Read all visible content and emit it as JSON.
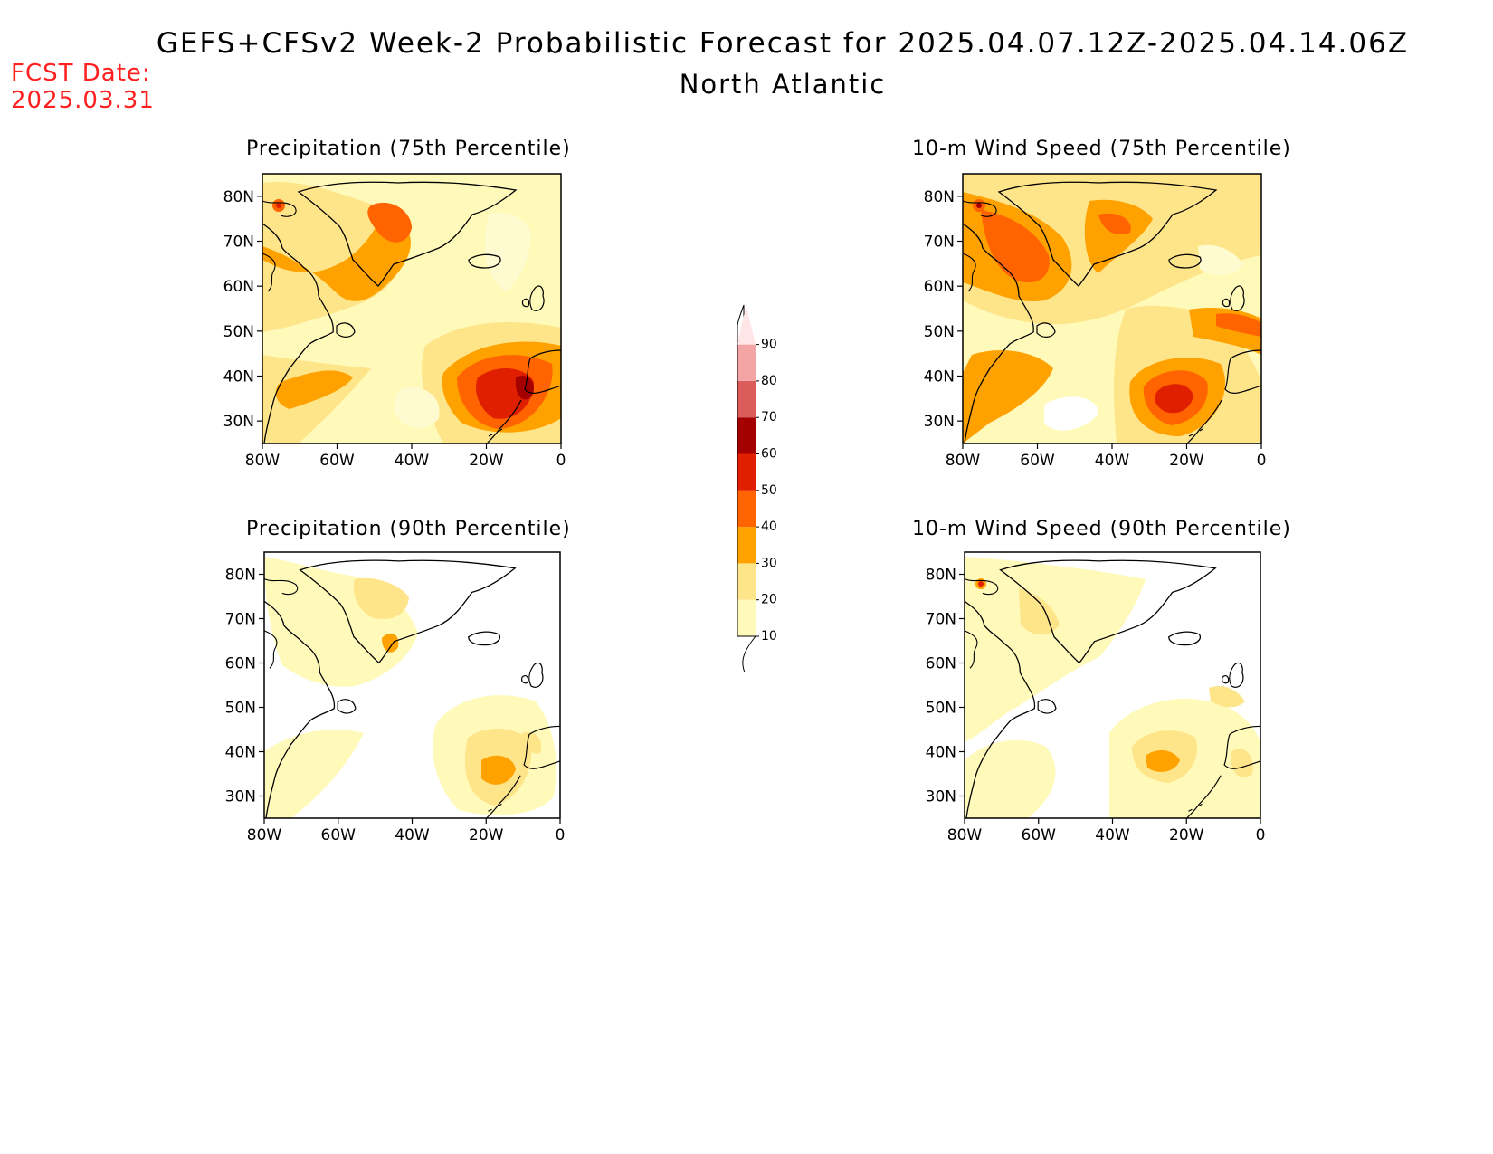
{
  "header": {
    "title": "GEFS+CFSv2 Week-2 Probabilistic Forecast for 2025.04.07.12Z-2025.04.14.06Z",
    "subtitle": "North Atlantic",
    "fcst_date_label": "FCST Date:",
    "fcst_date_value": "2025.03.31"
  },
  "panels": [
    {
      "title": "Precipitation (75th Percentile)"
    },
    {
      "title": "10-m Wind Speed (75th Percentile)"
    },
    {
      "title": "Precipitation (90th Percentile)"
    },
    {
      "title": "10-m Wind Speed (90th Percentile)"
    }
  ],
  "axes": {
    "lat_ticks": [
      "80N",
      "70N",
      "60N",
      "50N",
      "40N",
      "30N"
    ],
    "lon_ticks": [
      "80W",
      "60W",
      "40W",
      "20W",
      "0"
    ]
  },
  "colorbar": {
    "levels": [
      "10",
      "20",
      "30",
      "40",
      "50",
      "60",
      "70",
      "80",
      "90"
    ],
    "colors": [
      "#fff9ba",
      "#ffe58a",
      "#ffa200",
      "#ff6400",
      "#e01e00",
      "#a50000",
      "#dc5c5c",
      "#f3a4a4",
      "#ffe5e5"
    ]
  }
}
